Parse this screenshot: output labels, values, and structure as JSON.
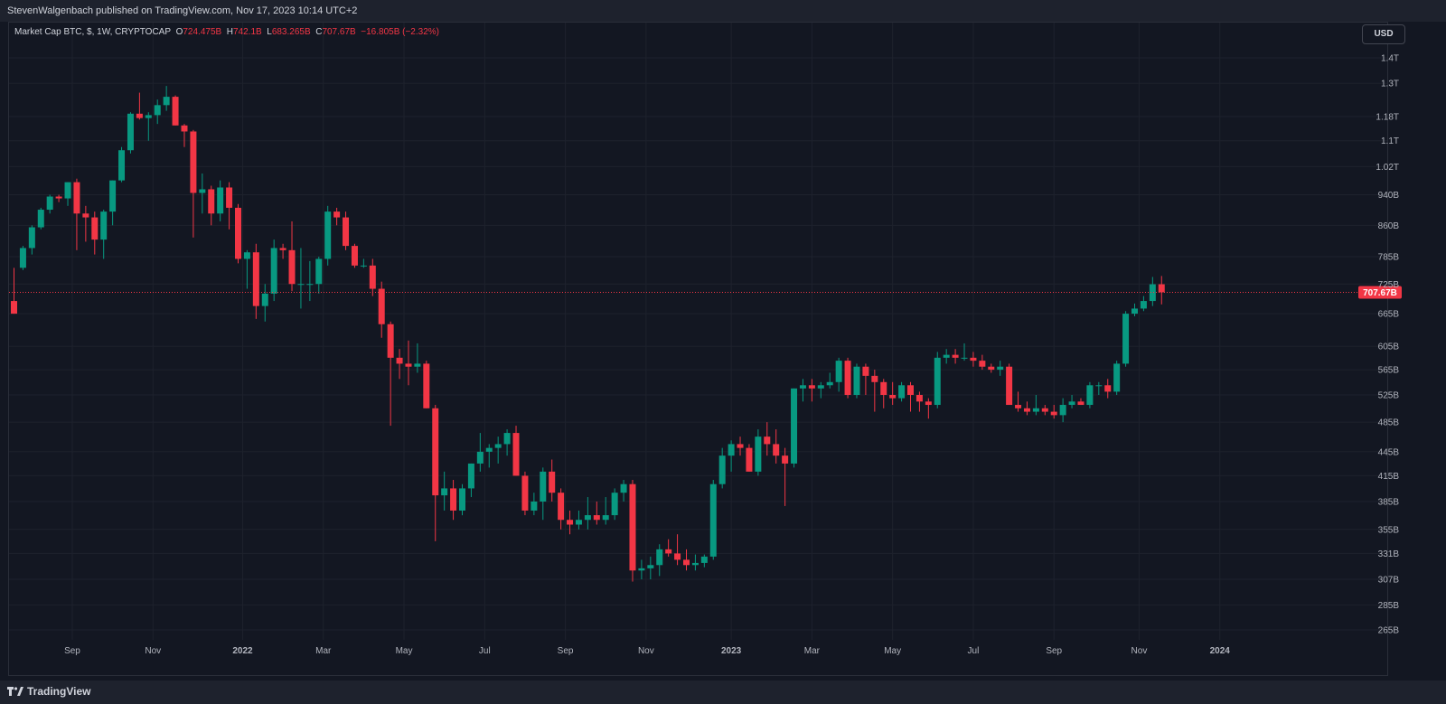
{
  "header": {
    "published_text": "StevenWalgenbach published on TradingView.com, Nov 17, 2023 10:14 UTC+2"
  },
  "legend": {
    "symbol": "Market Cap BTC, $, 1W, CRYPTOCAP",
    "o_label": "O",
    "o_value": "724.475B",
    "h_label": "H",
    "h_value": "742.1B",
    "l_label": "L",
    "l_value": "683.265B",
    "c_label": "C",
    "c_value": "707.67B",
    "change": "−16.805B (−2.32%)"
  },
  "currency_button": "USD",
  "brand": {
    "name": "TradingView",
    "icon": "tradingview-logo-icon"
  },
  "colors": {
    "up": "#089981",
    "down": "#f23645",
    "background": "#131722",
    "grid": "#1e222d"
  },
  "chart_data": {
    "type": "candlestick",
    "price_axis": {
      "scale": "log",
      "ticks": [
        "1.4T",
        "1.3T",
        "1.18T",
        "1.1T",
        "1.02T",
        "940B",
        "860B",
        "785B",
        "725B",
        "665B",
        "605B",
        "565B",
        "525B",
        "485B",
        "445B",
        "415B",
        "385B",
        "355B",
        "331B",
        "307B",
        "285B",
        "265B"
      ],
      "tick_values": [
        1400,
        1300,
        1180,
        1100,
        1020,
        940,
        860,
        785,
        725,
        665,
        605,
        565,
        525,
        485,
        445,
        415,
        385,
        355,
        331,
        307,
        285,
        265
      ],
      "range": [
        255,
        1480
      ],
      "unit": "B USD",
      "last_price_label": "707.67B",
      "last_price": 707.67
    },
    "time_axis": {
      "labels": [
        "Sep",
        "Nov",
        "2022",
        "Mar",
        "May",
        "Jul",
        "Sep",
        "Nov",
        "2023",
        "Mar",
        "May",
        "Jul",
        "Sep",
        "Nov",
        "2024"
      ],
      "label_bar_index": [
        6.5,
        15.5,
        25.5,
        34.5,
        43.5,
        52.5,
        61.5,
        70.5,
        80,
        89,
        98,
        107,
        116,
        125.5,
        134.5
      ]
    },
    "candles": [
      [
        690,
        760,
        665,
        665
      ],
      [
        760,
        810,
        755,
        805
      ],
      [
        805,
        860,
        790,
        855
      ],
      [
        855,
        905,
        850,
        900
      ],
      [
        900,
        940,
        890,
        935
      ],
      [
        935,
        940,
        920,
        930
      ],
      [
        930,
        975,
        910,
        975
      ],
      [
        975,
        985,
        800,
        890
      ],
      [
        890,
        910,
        820,
        880
      ],
      [
        880,
        895,
        790,
        825
      ],
      [
        825,
        900,
        780,
        895
      ],
      [
        895,
        980,
        860,
        980
      ],
      [
        980,
        1080,
        975,
        1070
      ],
      [
        1070,
        1195,
        1060,
        1190
      ],
      [
        1190,
        1265,
        1170,
        1175
      ],
      [
        1175,
        1195,
        1100,
        1185
      ],
      [
        1185,
        1240,
        1155,
        1220
      ],
      [
        1220,
        1290,
        1200,
        1250
      ],
      [
        1250,
        1255,
        1150,
        1150
      ],
      [
        1150,
        1155,
        1080,
        1130
      ],
      [
        1130,
        1135,
        830,
        945
      ],
      [
        945,
        1000,
        890,
        955
      ],
      [
        955,
        965,
        860,
        890
      ],
      [
        890,
        980,
        870,
        960
      ],
      [
        960,
        975,
        850,
        905
      ],
      [
        905,
        915,
        770,
        780
      ],
      [
        780,
        800,
        715,
        795
      ],
      [
        795,
        815,
        655,
        680
      ],
      [
        680,
        725,
        650,
        705
      ],
      [
        705,
        825,
        690,
        805
      ],
      [
        805,
        815,
        780,
        800
      ],
      [
        800,
        870,
        710,
        725
      ],
      [
        725,
        805,
        675,
        725
      ],
      [
        725,
        775,
        690,
        725
      ],
      [
        725,
        785,
        705,
        780
      ],
      [
        780,
        910,
        765,
        895
      ],
      [
        895,
        905,
        860,
        880
      ],
      [
        880,
        895,
        800,
        810
      ],
      [
        810,
        815,
        760,
        765
      ],
      [
        765,
        780,
        760,
        765
      ],
      [
        765,
        780,
        700,
        715
      ],
      [
        715,
        730,
        620,
        645
      ],
      [
        645,
        650,
        480,
        585
      ],
      [
        585,
        600,
        550,
        575
      ],
      [
        575,
        615,
        540,
        570
      ],
      [
        570,
        610,
        560,
        575
      ],
      [
        575,
        580,
        505,
        505
      ],
      [
        505,
        510,
        343,
        392
      ],
      [
        392,
        420,
        375,
        400
      ],
      [
        400,
        410,
        365,
        375
      ],
      [
        375,
        405,
        370,
        400
      ],
      [
        400,
        430,
        390,
        430
      ],
      [
        430,
        470,
        420,
        445
      ],
      [
        445,
        455,
        425,
        450
      ],
      [
        450,
        465,
        430,
        455
      ],
      [
        455,
        475,
        440,
        470
      ],
      [
        470,
        480,
        415,
        415
      ],
      [
        415,
        420,
        370,
        375
      ],
      [
        375,
        395,
        370,
        385
      ],
      [
        385,
        425,
        365,
        420
      ],
      [
        420,
        435,
        385,
        395
      ],
      [
        395,
        400,
        355,
        365
      ],
      [
        365,
        375,
        350,
        360
      ],
      [
        360,
        375,
        355,
        365
      ],
      [
        365,
        390,
        355,
        370
      ],
      [
        370,
        385,
        360,
        365
      ],
      [
        365,
        390,
        360,
        370
      ],
      [
        370,
        400,
        365,
        395
      ],
      [
        395,
        410,
        385,
        405
      ],
      [
        405,
        410,
        305,
        315
      ],
      [
        315,
        325,
        307,
        317
      ],
      [
        317,
        328,
        307,
        320
      ],
      [
        320,
        340,
        310,
        335
      ],
      [
        335,
        345,
        328,
        331
      ],
      [
        331,
        350,
        320,
        325
      ],
      [
        325,
        335,
        315,
        320
      ],
      [
        320,
        330,
        315,
        322
      ],
      [
        322,
        330,
        318,
        328
      ],
      [
        328,
        410,
        325,
        405
      ],
      [
        405,
        450,
        400,
        440
      ],
      [
        440,
        460,
        420,
        455
      ],
      [
        455,
        465,
        440,
        450
      ],
      [
        450,
        455,
        420,
        420
      ],
      [
        420,
        475,
        415,
        465
      ],
      [
        465,
        485,
        440,
        455
      ],
      [
        455,
        475,
        430,
        440
      ],
      [
        440,
        450,
        380,
        430
      ],
      [
        430,
        535,
        425,
        535
      ],
      [
        535,
        550,
        515,
        540
      ],
      [
        540,
        550,
        515,
        535
      ],
      [
        535,
        545,
        520,
        540
      ],
      [
        540,
        560,
        535,
        545
      ],
      [
        545,
        585,
        530,
        580
      ],
      [
        580,
        585,
        520,
        525
      ],
      [
        525,
        575,
        520,
        570
      ],
      [
        570,
        575,
        525,
        555
      ],
      [
        555,
        565,
        500,
        545
      ],
      [
        545,
        550,
        505,
        525
      ],
      [
        525,
        545,
        510,
        520
      ],
      [
        520,
        545,
        515,
        540
      ],
      [
        540,
        545,
        500,
        525
      ],
      [
        525,
        530,
        500,
        515
      ],
      [
        515,
        520,
        490,
        510
      ],
      [
        510,
        595,
        505,
        585
      ],
      [
        585,
        600,
        575,
        590
      ],
      [
        590,
        600,
        575,
        585
      ],
      [
        585,
        610,
        580,
        585
      ],
      [
        585,
        595,
        570,
        580
      ],
      [
        580,
        590,
        565,
        570
      ],
      [
        570,
        575,
        560,
        565
      ],
      [
        565,
        580,
        555,
        570
      ],
      [
        570,
        575,
        515,
        510
      ],
      [
        510,
        530,
        500,
        505
      ],
      [
        505,
        515,
        495,
        500
      ],
      [
        500,
        525,
        495,
        505
      ],
      [
        505,
        510,
        495,
        500
      ],
      [
        500,
        510,
        490,
        495
      ],
      [
        495,
        520,
        485,
        510
      ],
      [
        510,
        525,
        505,
        515
      ],
      [
        515,
        520,
        510,
        510
      ],
      [
        510,
        545,
        505,
        540
      ],
      [
        540,
        545,
        525,
        540
      ],
      [
        540,
        550,
        520,
        530
      ],
      [
        530,
        580,
        525,
        575
      ],
      [
        575,
        670,
        570,
        665
      ],
      [
        665,
        685,
        660,
        675
      ],
      [
        675,
        700,
        670,
        690
      ],
      [
        690,
        740,
        680,
        724.475
      ],
      [
        724.475,
        742.1,
        683.265,
        707.67
      ]
    ]
  }
}
